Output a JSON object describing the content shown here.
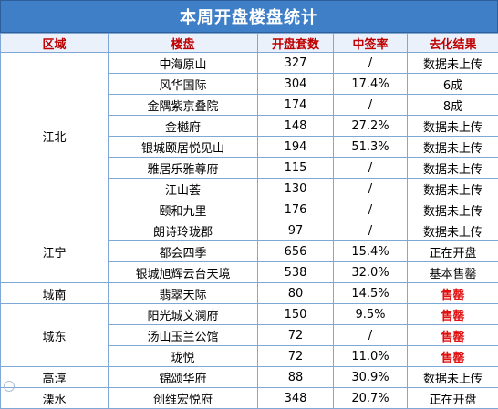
{
  "title": "本周开盘楼盘统计",
  "headers": [
    "区域",
    "楼盘",
    "开盘套数",
    "中签率",
    "去化结果"
  ],
  "colors": {
    "header_bg": "#3f7fc7",
    "header_text": "#c00000",
    "sold_text": "#e01010",
    "border": "#7fa8d6"
  },
  "regions": [
    {
      "name": "江北",
      "rows": [
        {
          "name": "中海原山",
          "units": "327",
          "rate": "/",
          "result": "数据未上传",
          "sold": false
        },
        {
          "name": "风华国际",
          "units": "304",
          "rate": "17.4%",
          "result": "6成",
          "sold": false
        },
        {
          "name": "金隅紫京叠院",
          "units": "174",
          "rate": "/",
          "result": "8成",
          "sold": false
        },
        {
          "name": "金樾府",
          "units": "148",
          "rate": "27.2%",
          "result": "数据未上传",
          "sold": false
        },
        {
          "name": "银城颐居悦见山",
          "units": "194",
          "rate": "51.3%",
          "result": "数据未上传",
          "sold": false
        },
        {
          "name": "雅居乐雅尊府",
          "units": "115",
          "rate": "/",
          "result": "数据未上传",
          "sold": false
        },
        {
          "name": "江山荟",
          "units": "130",
          "rate": "/",
          "result": "数据未上传",
          "sold": false
        },
        {
          "name": "颐和九里",
          "units": "176",
          "rate": "/",
          "result": "数据未上传",
          "sold": false
        }
      ]
    },
    {
      "name": "江宁",
      "rows": [
        {
          "name": "朗诗玲珑郡",
          "units": "97",
          "rate": "/",
          "result": "数据未上传",
          "sold": false
        },
        {
          "name": "都会四季",
          "units": "656",
          "rate": "15.4%",
          "result": "正在开盘",
          "sold": false
        },
        {
          "name": "银城旭辉云台天境",
          "units": "538",
          "rate": "32.0%",
          "result": "基本售罄",
          "sold": false
        }
      ]
    },
    {
      "name": "城南",
      "rows": [
        {
          "name": "翡翠天际",
          "units": "80",
          "rate": "14.5%",
          "result": "售罄",
          "sold": true
        }
      ]
    },
    {
      "name": "城东",
      "rows": [
        {
          "name": "阳光城文澜府",
          "units": "150",
          "rate": "9.5%",
          "result": "售罄",
          "sold": true
        },
        {
          "name": "汤山玉兰公馆",
          "units": "72",
          "rate": "/",
          "result": "售罄",
          "sold": true
        },
        {
          "name": "珑悦",
          "units": "72",
          "rate": "11.0%",
          "result": "售罄",
          "sold": true
        }
      ]
    },
    {
      "name": "高淳",
      "rows": [
        {
          "name": "锦颂华府",
          "units": "88",
          "rate": "30.9%",
          "result": "数据未上传",
          "sold": false
        }
      ]
    },
    {
      "name": "溧水",
      "rows": [
        {
          "name": "创维宏悦府",
          "units": "348",
          "rate": "20.7%",
          "result": "正在开盘",
          "sold": false
        }
      ]
    }
  ]
}
